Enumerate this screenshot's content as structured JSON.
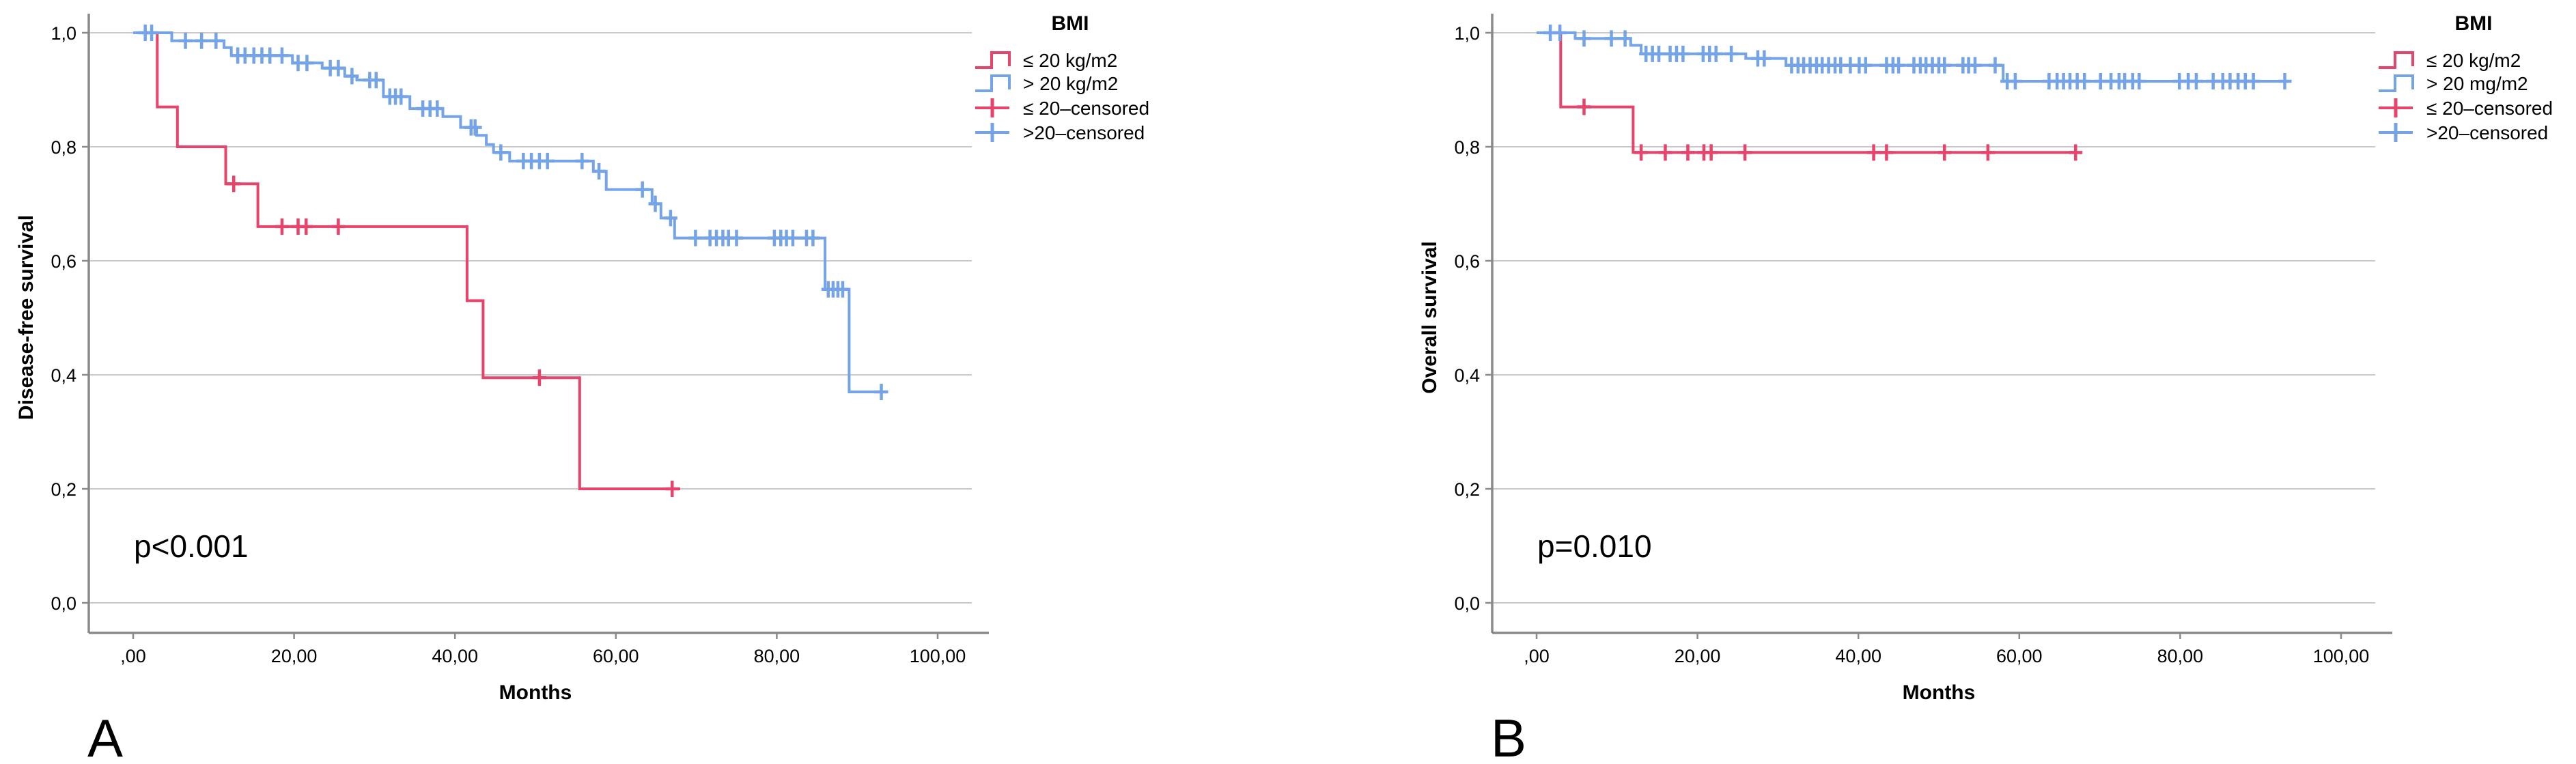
{
  "figure": {
    "description": "Kaplan-Meier survival curves by BMI group, two panels",
    "background": "#ffffff"
  },
  "style": {
    "red": "#e8436a",
    "blue": "#74a3e8",
    "grid_color": "#c9c9c9",
    "axis_color": "#8a8a8a",
    "text_color": "#000000"
  },
  "chart_data": [
    {
      "type": "line",
      "subtype": "kaplan-meier-step",
      "panel_letter": "A",
      "title": "",
      "xlabel": "Months",
      "ylabel": "Disease-free survival",
      "p_label": "p<0.001",
      "xlim": [
        0,
        100
      ],
      "ylim": [
        0.0,
        1.0
      ],
      "grid": "horizontal",
      "x_ticks": [
        ",00",
        "20,00",
        "40,00",
        "60,00",
        "80,00",
        "100,00"
      ],
      "x_tick_values": [
        0,
        20,
        40,
        60,
        80,
        100
      ],
      "y_ticks": [
        "1,0",
        "0,8",
        "0,6",
        "0,4",
        "0,2",
        "0,0"
      ],
      "y_tick_values": [
        1.0,
        0.8,
        0.6,
        0.4,
        0.2,
        0.0
      ],
      "legend": {
        "title": "BMI",
        "position": "top-right-outside",
        "items": [
          {
            "label": "≤ 20 kg/m2",
            "color": "red",
            "symbol": "step"
          },
          {
            "label": "> 20 kg/m2",
            "color": "blue",
            "symbol": "step"
          },
          {
            "label": "≤ 20–censored",
            "color": "red",
            "symbol": "censor"
          },
          {
            "label": ">20–censored",
            "color": "blue",
            "symbol": "censor"
          }
        ]
      },
      "series": [
        {
          "name": "≤ 20 kg/m2",
          "color": "red",
          "steps": [
            [
              0,
              1
            ],
            [
              3,
              1
            ],
            [
              3,
              0.87
            ],
            [
              5.5,
              0.87
            ],
            [
              5.5,
              0.8
            ],
            [
              11.5,
              0.8
            ],
            [
              11.5,
              0.735
            ],
            [
              15.5,
              0.735
            ],
            [
              15.5,
              0.66
            ],
            [
              41.5,
              0.66
            ],
            [
              41.5,
              0.53
            ],
            [
              43.5,
              0.53
            ],
            [
              43.5,
              0.395
            ],
            [
              55.5,
              0.395
            ],
            [
              55.5,
              0.2
            ],
            [
              68,
              0.2
            ]
          ],
          "censors": [
            [
              12.5,
              0.735
            ],
            [
              18.5,
              0.66
            ],
            [
              20.5,
              0.66
            ],
            [
              21.5,
              0.66
            ],
            [
              25.5,
              0.66
            ],
            [
              50.5,
              0.395
            ],
            [
              67,
              0.2
            ]
          ]
        },
        {
          "name": "> 20 kg/m2",
          "color": "blue",
          "steps": [
            [
              0,
              1
            ],
            [
              4.8,
              1
            ],
            [
              4.8,
              0.986
            ],
            [
              11.3,
              0.986
            ],
            [
              11.3,
              0.974
            ],
            [
              12.2,
              0.974
            ],
            [
              12.2,
              0.96
            ],
            [
              19.8,
              0.96
            ],
            [
              19.8,
              0.947
            ],
            [
              23.5,
              0.947
            ],
            [
              23.5,
              0.938
            ],
            [
              26.3,
              0.938
            ],
            [
              26.3,
              0.924
            ],
            [
              27.8,
              0.924
            ],
            [
              27.8,
              0.917
            ],
            [
              31.1,
              0.917
            ],
            [
              31.1,
              0.888
            ],
            [
              34.4,
              0.888
            ],
            [
              34.4,
              0.867
            ],
            [
              38.5,
              0.867
            ],
            [
              38.5,
              0.853
            ],
            [
              40.7,
              0.853
            ],
            [
              40.7,
              0.834
            ],
            [
              42.7,
              0.834
            ],
            [
              42.7,
              0.82
            ],
            [
              43.9,
              0.82
            ],
            [
              43.9,
              0.804
            ],
            [
              44.8,
              0.804
            ],
            [
              44.8,
              0.79
            ],
            [
              46.8,
              0.79
            ],
            [
              46.8,
              0.775
            ],
            [
              57.2,
              0.775
            ],
            [
              57.2,
              0.757
            ],
            [
              58.8,
              0.757
            ],
            [
              58.8,
              0.725
            ],
            [
              64.5,
              0.725
            ],
            [
              64.5,
              0.7
            ],
            [
              65.6,
              0.7
            ],
            [
              65.6,
              0.675
            ],
            [
              67.3,
              0.675
            ],
            [
              67.3,
              0.64
            ],
            [
              86,
              0.64
            ],
            [
              86,
              0.55
            ],
            [
              89,
              0.55
            ],
            [
              89,
              0.37
            ],
            [
              93.5,
              0.37
            ]
          ],
          "censors": [
            [
              1.5,
              1
            ],
            [
              2.3,
              1
            ],
            [
              6.5,
              0.986
            ],
            [
              8.5,
              0.986
            ],
            [
              10.3,
              0.986
            ],
            [
              13,
              0.96
            ],
            [
              13.9,
              0.96
            ],
            [
              15,
              0.96
            ],
            [
              16,
              0.96
            ],
            [
              17,
              0.96
            ],
            [
              18.5,
              0.96
            ],
            [
              20.5,
              0.947
            ],
            [
              21.6,
              0.947
            ],
            [
              24.5,
              0.938
            ],
            [
              25.5,
              0.938
            ],
            [
              27.2,
              0.924
            ],
            [
              29.4,
              0.917
            ],
            [
              30.2,
              0.917
            ],
            [
              31.9,
              0.888
            ],
            [
              32.6,
              0.888
            ],
            [
              33.3,
              0.888
            ],
            [
              36,
              0.867
            ],
            [
              36.9,
              0.867
            ],
            [
              37.8,
              0.867
            ],
            [
              42,
              0.834
            ],
            [
              42.5,
              0.834
            ],
            [
              45.7,
              0.79
            ],
            [
              48.5,
              0.775
            ],
            [
              49.5,
              0.775
            ],
            [
              50.5,
              0.775
            ],
            [
              51.5,
              0.775
            ],
            [
              55.8,
              0.775
            ],
            [
              57.9,
              0.757
            ],
            [
              63.3,
              0.725
            ],
            [
              64.9,
              0.7
            ],
            [
              66.8,
              0.675
            ],
            [
              69.9,
              0.64
            ],
            [
              71.7,
              0.64
            ],
            [
              72.5,
              0.64
            ],
            [
              73.3,
              0.64
            ],
            [
              74,
              0.64
            ],
            [
              75,
              0.64
            ],
            [
              79.7,
              0.64
            ],
            [
              80.5,
              0.64
            ],
            [
              81.2,
              0.64
            ],
            [
              82,
              0.64
            ],
            [
              83.7,
              0.64
            ],
            [
              84.5,
              0.64
            ],
            [
              86.4,
              0.55
            ],
            [
              87,
              0.55
            ],
            [
              87.6,
              0.55
            ],
            [
              88.2,
              0.55
            ],
            [
              93,
              0.37
            ]
          ]
        }
      ]
    },
    {
      "type": "line",
      "subtype": "kaplan-meier-step",
      "panel_letter": "B",
      "title": "",
      "xlabel": "Months",
      "ylabel": "Overall survival",
      "p_label": "p=0.010",
      "xlim": [
        0,
        100
      ],
      "ylim": [
        0.0,
        1.0
      ],
      "grid": "horizontal",
      "x_ticks": [
        ",00",
        "20,00",
        "40,00",
        "60,00",
        "80,00",
        "100,00"
      ],
      "x_tick_values": [
        0,
        20,
        40,
        60,
        80,
        100
      ],
      "y_ticks": [
        "1,0",
        "0,8",
        "0,6",
        "0,4",
        "0,2",
        "0,0"
      ],
      "y_tick_values": [
        1.0,
        0.8,
        0.6,
        0.4,
        0.2,
        0.0
      ],
      "legend": {
        "title": "BMI",
        "position": "top-right-outside",
        "items": [
          {
            "label": "≤ 20 kg/m2",
            "color": "red",
            "symbol": "step"
          },
          {
            "label": "> 20 mg/m2",
            "color": "blue",
            "symbol": "step"
          },
          {
            "label": "≤ 20–censored",
            "color": "red",
            "symbol": "censor"
          },
          {
            "label": ">20–censored",
            "color": "blue",
            "symbol": "censor"
          }
        ]
      },
      "series": [
        {
          "name": "≤ 20 kg/m2",
          "color": "red",
          "steps": [
            [
              0,
              1
            ],
            [
              3,
              1
            ],
            [
              3,
              0.87
            ],
            [
              12,
              0.87
            ],
            [
              12,
              0.79
            ],
            [
              67.3,
              0.79
            ]
          ],
          "censors": [
            [
              5.9,
              0.87
            ],
            [
              13,
              0.79
            ],
            [
              16,
              0.79
            ],
            [
              18.8,
              0.79
            ],
            [
              20.8,
              0.79
            ],
            [
              21.7,
              0.79
            ],
            [
              25.9,
              0.79
            ],
            [
              41.9,
              0.79
            ],
            [
              43.5,
              0.79
            ],
            [
              50.7,
              0.79
            ],
            [
              56.1,
              0.79
            ],
            [
              67,
              0.79
            ]
          ]
        },
        {
          "name": "> 20 mg/m2",
          "color": "blue",
          "steps": [
            [
              0,
              1
            ],
            [
              4.8,
              1
            ],
            [
              4.8,
              0.99
            ],
            [
              11.7,
              0.99
            ],
            [
              11.7,
              0.978
            ],
            [
              13,
              0.978
            ],
            [
              13,
              0.963
            ],
            [
              26,
              0.963
            ],
            [
              26,
              0.955
            ],
            [
              31,
              0.955
            ],
            [
              31,
              0.943
            ],
            [
              58,
              0.943
            ],
            [
              58,
              0.915
            ],
            [
              93.5,
              0.915
            ]
          ],
          "censors": [
            [
              1.7,
              1
            ],
            [
              2.9,
              1
            ],
            [
              5.9,
              0.99
            ],
            [
              9.3,
              0.99
            ],
            [
              11,
              0.99
            ],
            [
              13.6,
              0.963
            ],
            [
              14.4,
              0.963
            ],
            [
              15.2,
              0.963
            ],
            [
              16.6,
              0.963
            ],
            [
              17.4,
              0.963
            ],
            [
              18.2,
              0.963
            ],
            [
              20.7,
              0.963
            ],
            [
              21.5,
              0.963
            ],
            [
              22.3,
              0.963
            ],
            [
              24.2,
              0.963
            ],
            [
              27.5,
              0.955
            ],
            [
              28.3,
              0.955
            ],
            [
              31.7,
              0.943
            ],
            [
              32.5,
              0.943
            ],
            [
              33.2,
              0.943
            ],
            [
              34,
              0.943
            ],
            [
              34.8,
              0.943
            ],
            [
              35.5,
              0.943
            ],
            [
              36.3,
              0.943
            ],
            [
              37.1,
              0.943
            ],
            [
              37.8,
              0.943
            ],
            [
              39,
              0.943
            ],
            [
              40.1,
              0.943
            ],
            [
              40.9,
              0.943
            ],
            [
              43.5,
              0.943
            ],
            [
              44.3,
              0.943
            ],
            [
              45,
              0.943
            ],
            [
              46.9,
              0.943
            ],
            [
              47.7,
              0.943
            ],
            [
              48.4,
              0.943
            ],
            [
              49.2,
              0.943
            ],
            [
              50,
              0.943
            ],
            [
              50.7,
              0.943
            ],
            [
              53,
              0.943
            ],
            [
              53.7,
              0.943
            ],
            [
              54.5,
              0.943
            ],
            [
              57,
              0.943
            ],
            [
              58.5,
              0.915
            ],
            [
              59.5,
              0.915
            ],
            [
              63.7,
              0.915
            ],
            [
              64.7,
              0.915
            ],
            [
              65.5,
              0.915
            ],
            [
              66.3,
              0.915
            ],
            [
              67.2,
              0.915
            ],
            [
              68.1,
              0.915
            ],
            [
              70.1,
              0.915
            ],
            [
              71.4,
              0.915
            ],
            [
              72.4,
              0.915
            ],
            [
              73.1,
              0.915
            ],
            [
              74.1,
              0.915
            ],
            [
              74.9,
              0.915
            ],
            [
              79.9,
              0.915
            ],
            [
              81,
              0.915
            ],
            [
              82,
              0.915
            ],
            [
              84.1,
              0.915
            ],
            [
              85.3,
              0.915
            ],
            [
              86.2,
              0.915
            ],
            [
              87.2,
              0.915
            ],
            [
              88.1,
              0.915
            ],
            [
              89.1,
              0.915
            ],
            [
              93,
              0.915
            ]
          ]
        }
      ]
    }
  ]
}
